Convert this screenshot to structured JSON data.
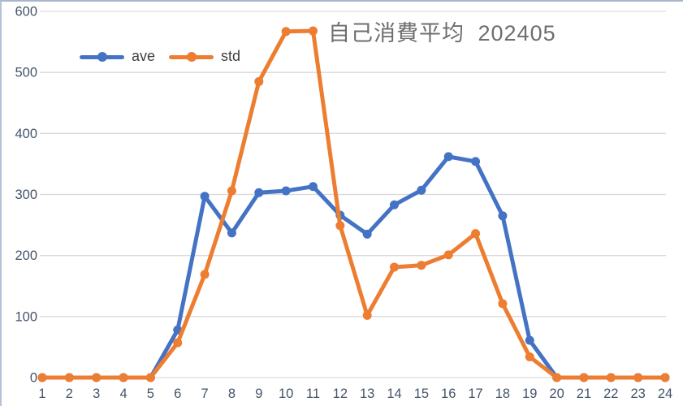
{
  "chart_data": {
    "type": "line",
    "title": "自己消費平均 202405",
    "x": [
      1,
      2,
      3,
      4,
      5,
      6,
      7,
      8,
      9,
      10,
      11,
      12,
      13,
      14,
      15,
      16,
      17,
      18,
      19,
      20,
      21,
      22,
      23,
      24
    ],
    "series": [
      {
        "name": "ave",
        "color": "#4472C4",
        "values": [
          0,
          0,
          0,
          0,
          0,
          78,
          297,
          237,
          303,
          306,
          313,
          266,
          235,
          283,
          307,
          362,
          354,
          265,
          61,
          0,
          0,
          0,
          0,
          0
        ]
      },
      {
        "name": "std",
        "color": "#ED7D31",
        "values": [
          0,
          0,
          0,
          0,
          0,
          57,
          169,
          306,
          485,
          567,
          568,
          249,
          102,
          181,
          184,
          201,
          236,
          121,
          34,
          0,
          0,
          0,
          0,
          0
        ]
      }
    ],
    "xlabel": "",
    "ylabel": "",
    "ylim": [
      0,
      600
    ],
    "yticks": [
      0,
      100,
      200,
      300,
      400,
      500,
      600
    ],
    "grid": "horizontal",
    "gridline_color": "#d9d9d9",
    "axis_label_color": "#44546A",
    "title_color": "#6e6e6e",
    "legend_position": "top-left",
    "line_width": 5,
    "marker": "circle",
    "marker_radius": 5.5
  }
}
